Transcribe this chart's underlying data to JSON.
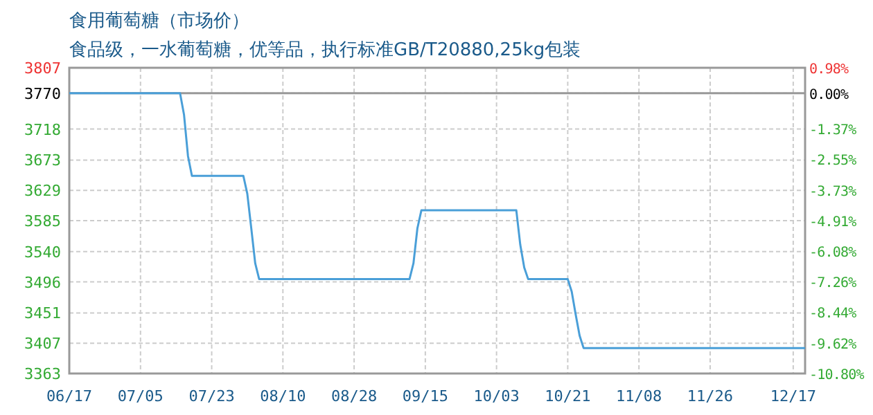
{
  "chart_data": {
    "type": "line",
    "title": "食用葡萄糖（市场价）",
    "subtitle": "食品级，一水葡萄糖，优等品，执行标准GB/T20880,25kg包装",
    "series": [
      {
        "color": "#4a9fd8",
        "x": [
          "--06-17",
          "--07-15",
          "--07-16",
          "--07-17",
          "--07-18",
          "--07-31",
          "--08-01",
          "--08-02",
          "--08-03",
          "--08-04",
          "--09-11",
          "--09-12",
          "--09-13",
          "--09-14",
          "--10-08",
          "--10-09",
          "--10-10",
          "--10-11",
          "--10-21",
          "--10-22",
          "--10-23",
          "--10-24",
          "--10-25",
          "--12-20"
        ],
        "values": [
          3770,
          3770,
          3739,
          3679,
          3650,
          3650,
          3624,
          3574,
          3523,
          3500,
          3500,
          3523,
          3574,
          3600,
          3600,
          3550,
          3517,
          3500,
          3500,
          3482,
          3449,
          3418,
          3400,
          3400
        ]
      }
    ],
    "xlim": [
      "--06-17",
      "--12-20"
    ],
    "xticks": [
      {
        "value": "--06-17",
        "label": "06/17"
      },
      {
        "value": "--07-05",
        "label": "07/05"
      },
      {
        "value": "--07-23",
        "label": "07/23"
      },
      {
        "value": "--08-10",
        "label": "08/10"
      },
      {
        "value": "--08-28",
        "label": "08/28"
      },
      {
        "value": "--09-15",
        "label": "09/15"
      },
      {
        "value": "--10-03",
        "label": "10/03"
      },
      {
        "value": "--10-21",
        "label": "10/21"
      },
      {
        "value": "--11-08",
        "label": "11/08"
      },
      {
        "value": "--11-26",
        "label": "11/26"
      },
      {
        "value": "--12-17",
        "label": "12/17"
      }
    ],
    "ylim": [
      3363,
      3807
    ],
    "yticks": [
      3363,
      3407,
      3451,
      3496,
      3540,
      3585,
      3629,
      3673,
      3718,
      3770,
      3807
    ],
    "y2lim": [
      -10.8,
      0.98
    ],
    "y2ticks": [
      {
        "value": -10.8,
        "label": "-10.80%"
      },
      {
        "value": -9.62,
        "label": "-9.62%"
      },
      {
        "value": -8.44,
        "label": "-8.44%"
      },
      {
        "value": -7.26,
        "label": "-7.26%"
      },
      {
        "value": -6.08,
        "label": "-6.08%"
      },
      {
        "value": -4.91,
        "label": "-4.91%"
      },
      {
        "value": -3.73,
        "label": "-3.73%"
      },
      {
        "value": -2.55,
        "label": "-2.55%"
      },
      {
        "value": -1.37,
        "label": "-1.37%"
      },
      {
        "value": 0,
        "label": "0.00%"
      },
      {
        "value": 0.98,
        "label": "0.98%"
      }
    ],
    "ref_lines": [
      {
        "axis": "y",
        "value": 3770,
        "color": "#999999"
      }
    ],
    "grid": true,
    "marker": "none",
    "line_style": "solid"
  }
}
